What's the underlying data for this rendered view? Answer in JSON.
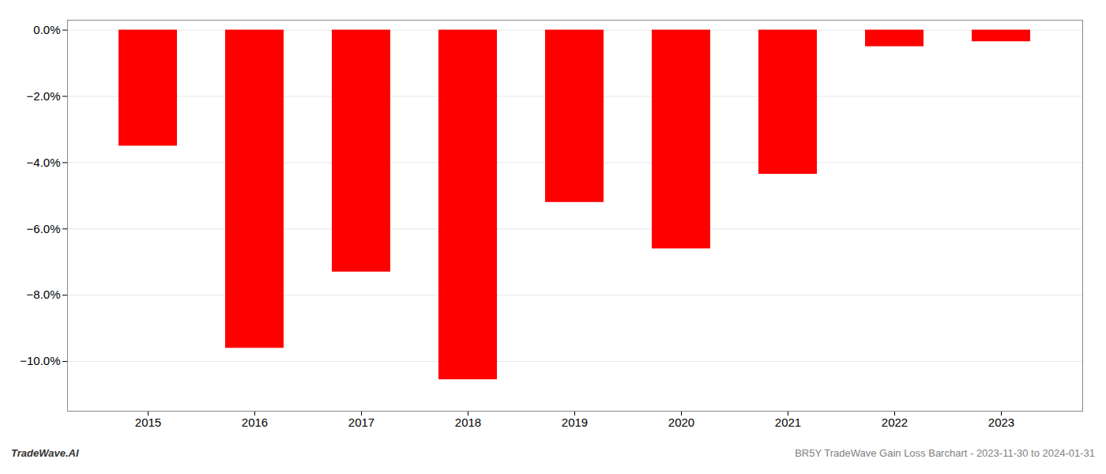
{
  "chart_data": {
    "type": "bar",
    "categories": [
      "2015",
      "2016",
      "2017",
      "2018",
      "2019",
      "2020",
      "2021",
      "2022",
      "2023"
    ],
    "values": [
      -3.5,
      -9.6,
      -7.3,
      -10.55,
      -5.2,
      -6.6,
      -4.35,
      -0.5,
      -0.35
    ],
    "color": "#ff0000",
    "ylim": [
      -11.5,
      0.3
    ],
    "yticks": [
      {
        "value": 0.0,
        "label": "0.0%"
      },
      {
        "value": -2.0,
        "label": "−2.0%"
      },
      {
        "value": -4.0,
        "label": "−4.0%"
      },
      {
        "value": -6.0,
        "label": "−6.0%"
      },
      {
        "value": -8.0,
        "label": "−8.0%"
      },
      {
        "value": -10.0,
        "label": "−10.0%"
      }
    ],
    "grid": true,
    "annotations": [
      "TradeWave.AI",
      "BR5Y TradeWave Gain Loss Barchart - 2023-11-30 to 2024-01-31"
    ]
  }
}
